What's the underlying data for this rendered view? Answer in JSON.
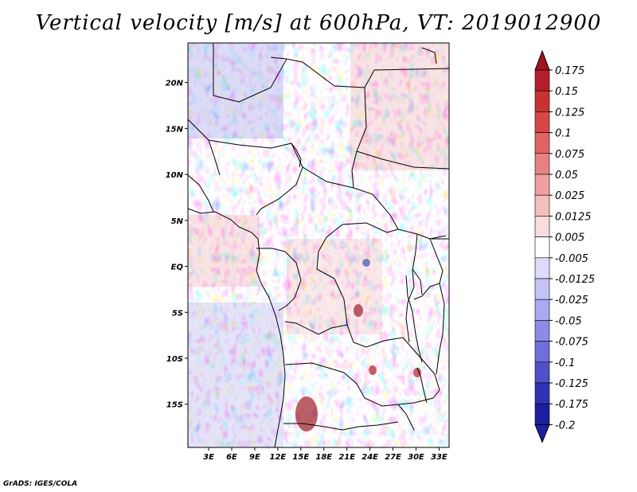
{
  "title": "Vertical velocity [m/s] at 600hPa, VT: 2019012900",
  "credit": "GrADS: IGES/COLA",
  "map": {
    "lat_labels": [
      "20N",
      "15N",
      "10N",
      "5N",
      "EQ",
      "5S",
      "10S",
      "15S"
    ],
    "lat_values": [
      20,
      15,
      10,
      5,
      0,
      -5,
      -10,
      -15
    ],
    "lon_labels": [
      "3E",
      "6E",
      "9E",
      "12E",
      "15E",
      "18E",
      "21E",
      "24E",
      "27E",
      "30E",
      "33E"
    ],
    "lon_values": [
      3,
      6,
      9,
      12,
      15,
      18,
      21,
      24,
      27,
      30,
      33
    ],
    "lat_range": [
      -19.7,
      24.3
    ],
    "lon_range": [
      0.3,
      34.3
    ]
  },
  "colorbar": {
    "labels": [
      "0.175",
      "0.15",
      "0.125",
      "0.1",
      "0.075",
      "0.05",
      "0.025",
      "0.0125",
      "0.005",
      "-0.005",
      "-0.0125",
      "-0.025",
      "-0.05",
      "-0.075",
      "-0.1",
      "-0.125",
      "-0.175",
      "-0.2"
    ],
    "colors": [
      "#a0141e",
      "#b41e28",
      "#c83232",
      "#d84646",
      "#e06464",
      "#e88282",
      "#f0a0a0",
      "#f5bebe",
      "#fadcdc",
      "#ffffff",
      "#dcdcfa",
      "#c3c3f5",
      "#aaaaf0",
      "#8c8ce6",
      "#6e6edc",
      "#5050c8",
      "#3232b4",
      "#1e1ea0"
    ],
    "top_cap_color": "#a0141e",
    "bottom_cap_color": "#1e1ea0"
  }
}
